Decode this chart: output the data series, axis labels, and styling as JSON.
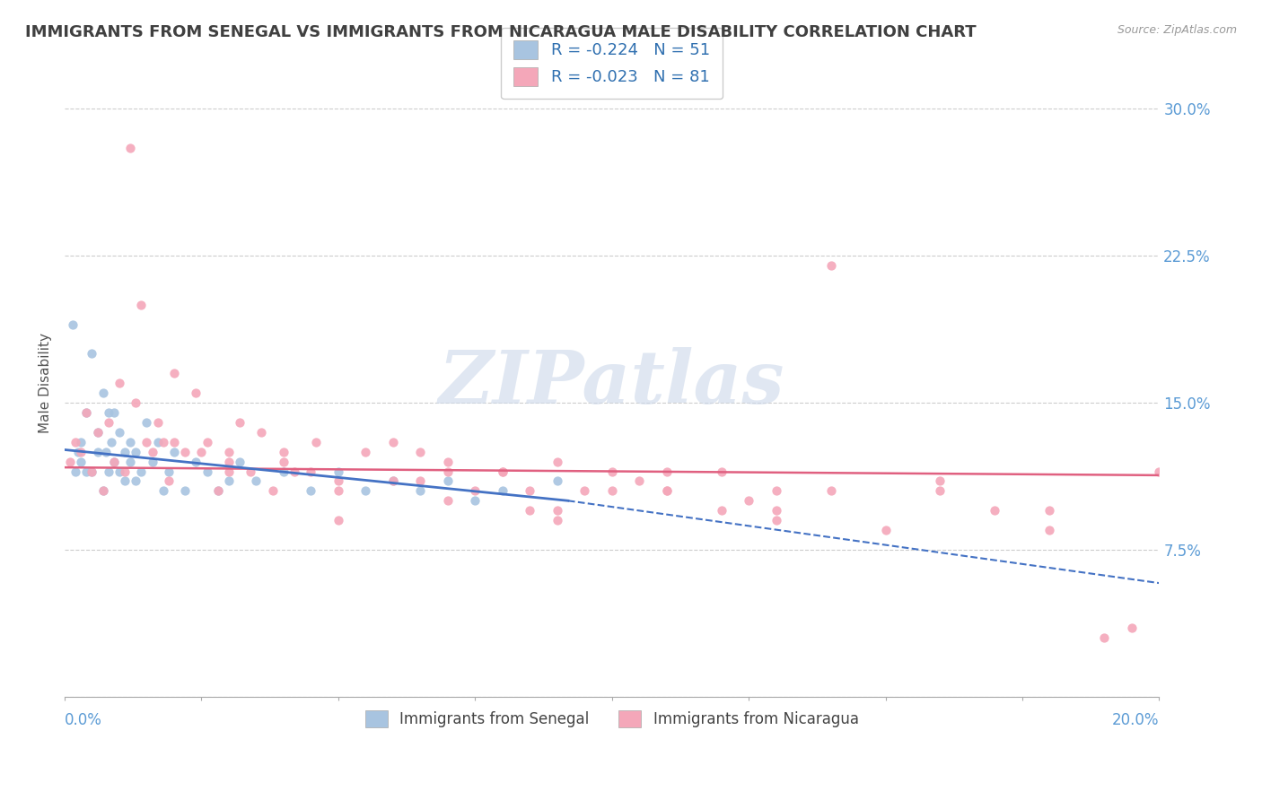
{
  "title": "IMMIGRANTS FROM SENEGAL VS IMMIGRANTS FROM NICARAGUA MALE DISABILITY CORRELATION CHART",
  "source": "Source: ZipAtlas.com",
  "ylabel": "Male Disability",
  "yaxis_ticks": [
    0.0,
    0.075,
    0.15,
    0.225,
    0.3
  ],
  "yaxis_labels": [
    "",
    "7.5%",
    "15.0%",
    "22.5%",
    "30.0%"
  ],
  "xlim": [
    0.0,
    0.2
  ],
  "ylim": [
    0.0,
    0.32
  ],
  "legend_label1": "Immigrants from Senegal",
  "legend_label2": "Immigrants from Nicaragua",
  "r1": -0.224,
  "n1": 51,
  "r2": -0.023,
  "n2": 81,
  "color1": "#a8c4e0",
  "color2": "#f4a7b9",
  "trendline1_solid_color": "#4472c4",
  "trendline2_color": "#e06080",
  "background_color": "#ffffff",
  "grid_color": "#c8c8c8",
  "title_color": "#404040",
  "axis_label_color": "#5b9bd5",
  "watermark_color": "#ccd8ea",
  "senegal_x": [
    0.0015,
    0.002,
    0.0025,
    0.003,
    0.003,
    0.004,
    0.004,
    0.005,
    0.005,
    0.006,
    0.006,
    0.007,
    0.007,
    0.0075,
    0.008,
    0.008,
    0.0085,
    0.009,
    0.009,
    0.01,
    0.01,
    0.011,
    0.011,
    0.012,
    0.012,
    0.013,
    0.013,
    0.014,
    0.015,
    0.016,
    0.017,
    0.018,
    0.019,
    0.02,
    0.022,
    0.024,
    0.026,
    0.028,
    0.03,
    0.032,
    0.035,
    0.04,
    0.045,
    0.05,
    0.055,
    0.06,
    0.065,
    0.07,
    0.075,
    0.08,
    0.09
  ],
  "senegal_y": [
    0.19,
    0.115,
    0.125,
    0.13,
    0.12,
    0.145,
    0.115,
    0.175,
    0.115,
    0.135,
    0.125,
    0.155,
    0.105,
    0.125,
    0.145,
    0.115,
    0.13,
    0.145,
    0.12,
    0.135,
    0.115,
    0.125,
    0.11,
    0.13,
    0.12,
    0.11,
    0.125,
    0.115,
    0.14,
    0.12,
    0.13,
    0.105,
    0.115,
    0.125,
    0.105,
    0.12,
    0.115,
    0.105,
    0.11,
    0.12,
    0.11,
    0.115,
    0.105,
    0.115,
    0.105,
    0.11,
    0.105,
    0.11,
    0.1,
    0.105,
    0.11
  ],
  "nicaragua_x": [
    0.001,
    0.002,
    0.003,
    0.004,
    0.005,
    0.006,
    0.007,
    0.008,
    0.009,
    0.01,
    0.011,
    0.012,
    0.013,
    0.014,
    0.015,
    0.016,
    0.017,
    0.018,
    0.019,
    0.02,
    0.022,
    0.024,
    0.026,
    0.028,
    0.03,
    0.032,
    0.034,
    0.036,
    0.038,
    0.04,
    0.042,
    0.046,
    0.05,
    0.055,
    0.06,
    0.065,
    0.07,
    0.075,
    0.08,
    0.085,
    0.09,
    0.095,
    0.1,
    0.11,
    0.12,
    0.13,
    0.14,
    0.15,
    0.16,
    0.17,
    0.18,
    0.19,
    0.2,
    0.03,
    0.05,
    0.07,
    0.09,
    0.11,
    0.13,
    0.03,
    0.05,
    0.07,
    0.09,
    0.11,
    0.13,
    0.02,
    0.04,
    0.06,
    0.08,
    0.1,
    0.12,
    0.14,
    0.16,
    0.18,
    0.195,
    0.025,
    0.045,
    0.065,
    0.085,
    0.105,
    0.125
  ],
  "nicaragua_y": [
    0.12,
    0.13,
    0.125,
    0.145,
    0.115,
    0.135,
    0.105,
    0.14,
    0.12,
    0.16,
    0.115,
    0.28,
    0.15,
    0.2,
    0.13,
    0.125,
    0.14,
    0.13,
    0.11,
    0.165,
    0.125,
    0.155,
    0.13,
    0.105,
    0.125,
    0.14,
    0.115,
    0.135,
    0.105,
    0.125,
    0.115,
    0.13,
    0.105,
    0.125,
    0.11,
    0.125,
    0.115,
    0.105,
    0.115,
    0.105,
    0.12,
    0.105,
    0.115,
    0.105,
    0.095,
    0.105,
    0.22,
    0.085,
    0.105,
    0.095,
    0.085,
    0.03,
    0.115,
    0.12,
    0.11,
    0.12,
    0.095,
    0.105,
    0.09,
    0.115,
    0.09,
    0.1,
    0.09,
    0.115,
    0.095,
    0.13,
    0.12,
    0.13,
    0.115,
    0.105,
    0.115,
    0.105,
    0.11,
    0.095,
    0.035,
    0.125,
    0.115,
    0.11,
    0.095,
    0.11,
    0.1
  ],
  "trend1_x0": 0.0,
  "trend1_x1": 0.092,
  "trend1_x2": 0.2,
  "trend1_y0": 0.126,
  "trend1_y1": 0.1,
  "trend1_y2": 0.058,
  "trend2_x0": 0.0,
  "trend2_x1": 0.2,
  "trend2_y0": 0.117,
  "trend2_y1": 0.113
}
